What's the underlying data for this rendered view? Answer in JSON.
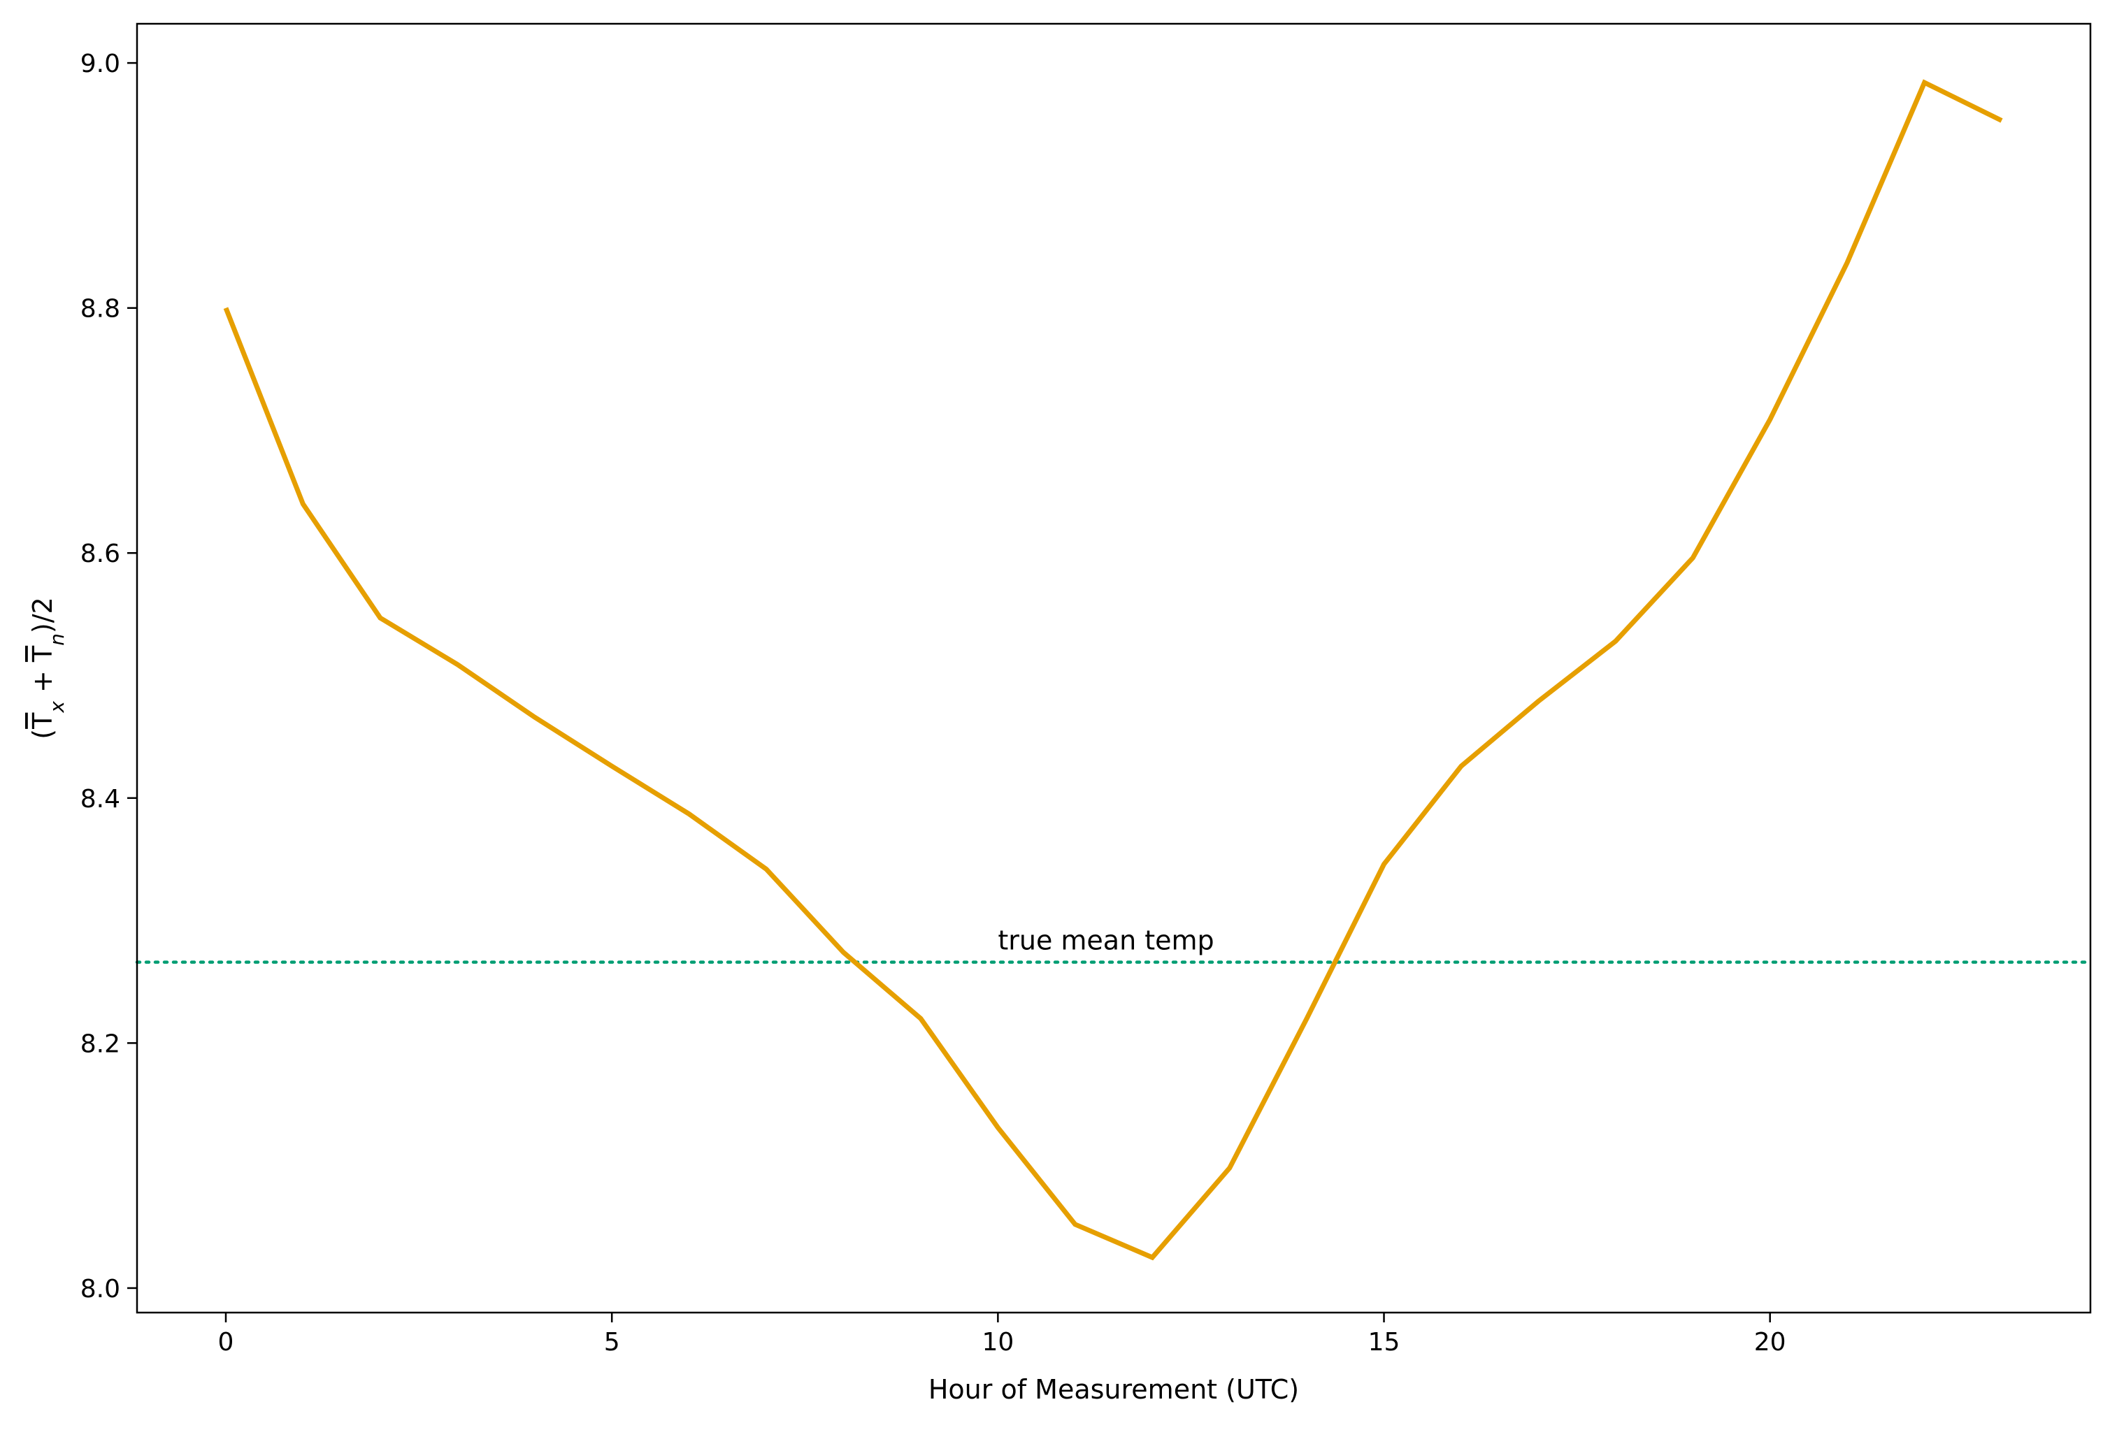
{
  "chart_data": {
    "type": "line",
    "xlabel": "Hour of Measurement (UTC)",
    "ylabel": "(T̄x + T̄n)/2",
    "xlim": [
      -1.15,
      24.15
    ],
    "ylim": [
      7.98,
      9.032
    ],
    "xticks": [
      0,
      5,
      10,
      15,
      20
    ],
    "xtick_labels": [
      "0",
      "5",
      "10",
      "15",
      "20"
    ],
    "yticks": [
      8.0,
      8.2,
      8.4,
      8.6,
      8.8,
      9.0
    ],
    "ytick_labels": [
      "8.0",
      "8.2",
      "8.4",
      "8.6",
      "8.8",
      "9.0"
    ],
    "grid": false,
    "series": [
      {
        "x": [
          0,
          1,
          2,
          3,
          4,
          5,
          6,
          7,
          8,
          9,
          10,
          11,
          12,
          13,
          14,
          15,
          16,
          17,
          18,
          19,
          20,
          21,
          22,
          23
        ],
        "values": [
          8.8,
          8.64,
          8.547,
          8.509,
          8.466,
          8.426,
          8.387,
          8.342,
          8.274,
          8.22,
          8.131,
          8.052,
          8.025,
          8.098,
          8.22,
          8.346,
          8.426,
          8.479,
          8.528,
          8.596,
          8.709,
          8.837,
          8.984,
          8.953
        ],
        "color": "#E69F00"
      }
    ],
    "reference_lines": [
      {
        "y": 8.266,
        "label": "true mean temp",
        "label_x": 10,
        "color": "#009E73",
        "style": "dotted"
      }
    ]
  }
}
